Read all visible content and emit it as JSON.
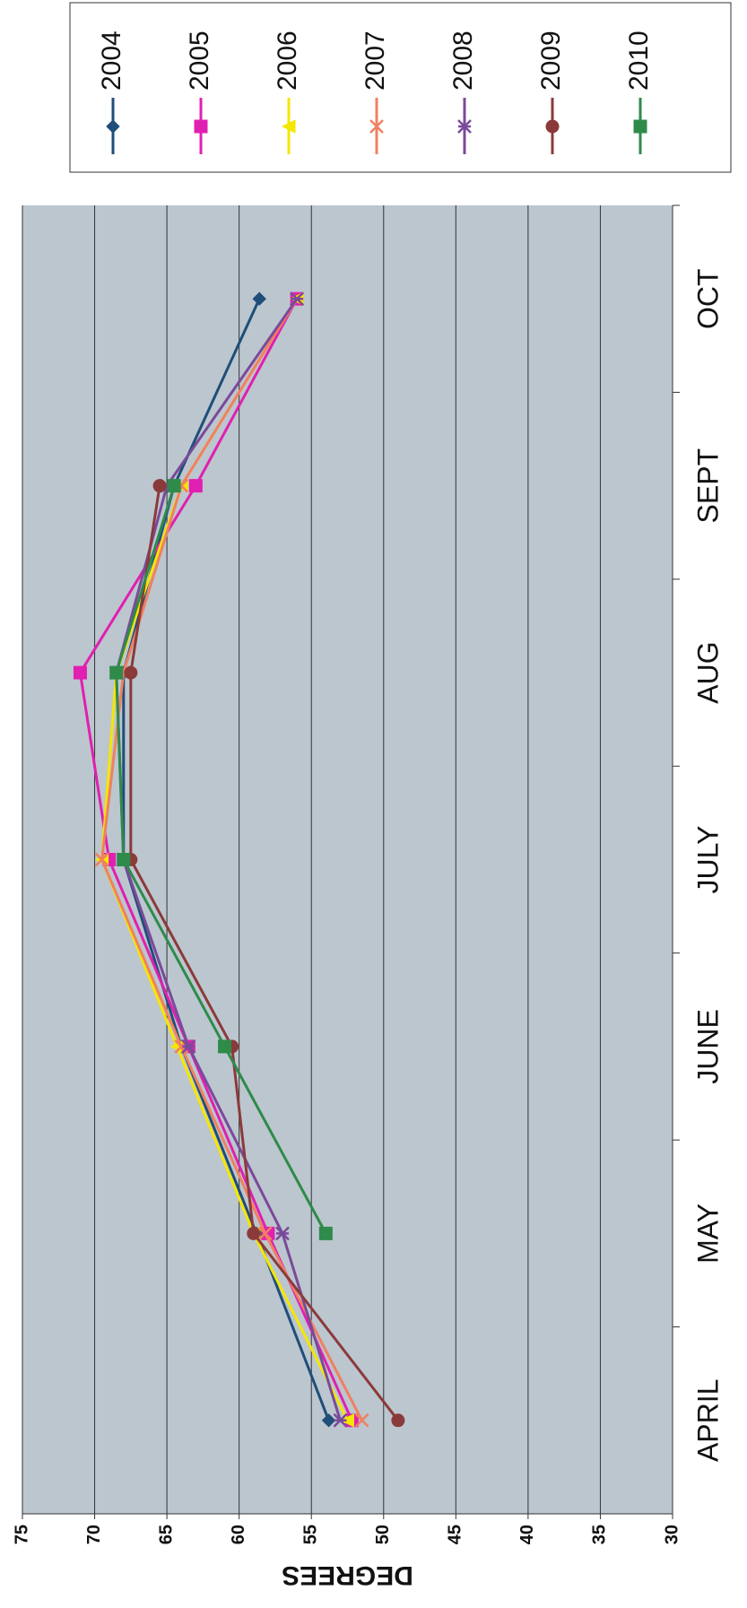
{
  "chart_data": {
    "type": "line",
    "y_label": "DEGREES",
    "categories": [
      "APRIL",
      "MAY",
      "JUNE",
      "JULY",
      "AUG",
      "SEPT",
      "OCT"
    ],
    "series": [
      {
        "name": "2004",
        "color": "#1f4e79",
        "marker": "diamond",
        "values": [
          53.8,
          58.8,
          64,
          68,
          68,
          64.5,
          58.6
        ]
      },
      {
        "name": "2005",
        "color": "#e020b0",
        "marker": "square",
        "values": [
          52.2,
          58,
          63.5,
          69,
          71,
          63,
          56
        ]
      },
      {
        "name": "2006",
        "color": "#f5e600",
        "marker": "triangle",
        "values": [
          52.5,
          59,
          64.3,
          69.5,
          68.5,
          64,
          56
        ]
      },
      {
        "name": "2007",
        "color": "#f08060",
        "marker": "x",
        "values": [
          51.5,
          58.2,
          64,
          69.5,
          68,
          64,
          56
        ]
      },
      {
        "name": "2008",
        "color": "#7a4a9a",
        "marker": "star",
        "values": [
          53,
          57,
          63.5,
          68,
          68.5,
          65,
          56
        ]
      },
      {
        "name": "2009",
        "color": "#8b3a3a",
        "marker": "circle",
        "values": [
          49,
          59,
          60.5,
          67.5,
          67.5,
          65.5,
          null
        ]
      },
      {
        "name": "2010",
        "color": "#2e8b4a",
        "marker": "square",
        "values": [
          null,
          54,
          61,
          68,
          68.5,
          64.5,
          null
        ]
      }
    ],
    "ylim": [
      30,
      75
    ],
    "yticks": [
      30,
      35,
      40,
      45,
      50,
      55,
      60,
      65,
      70,
      75
    ],
    "grid": true
  }
}
